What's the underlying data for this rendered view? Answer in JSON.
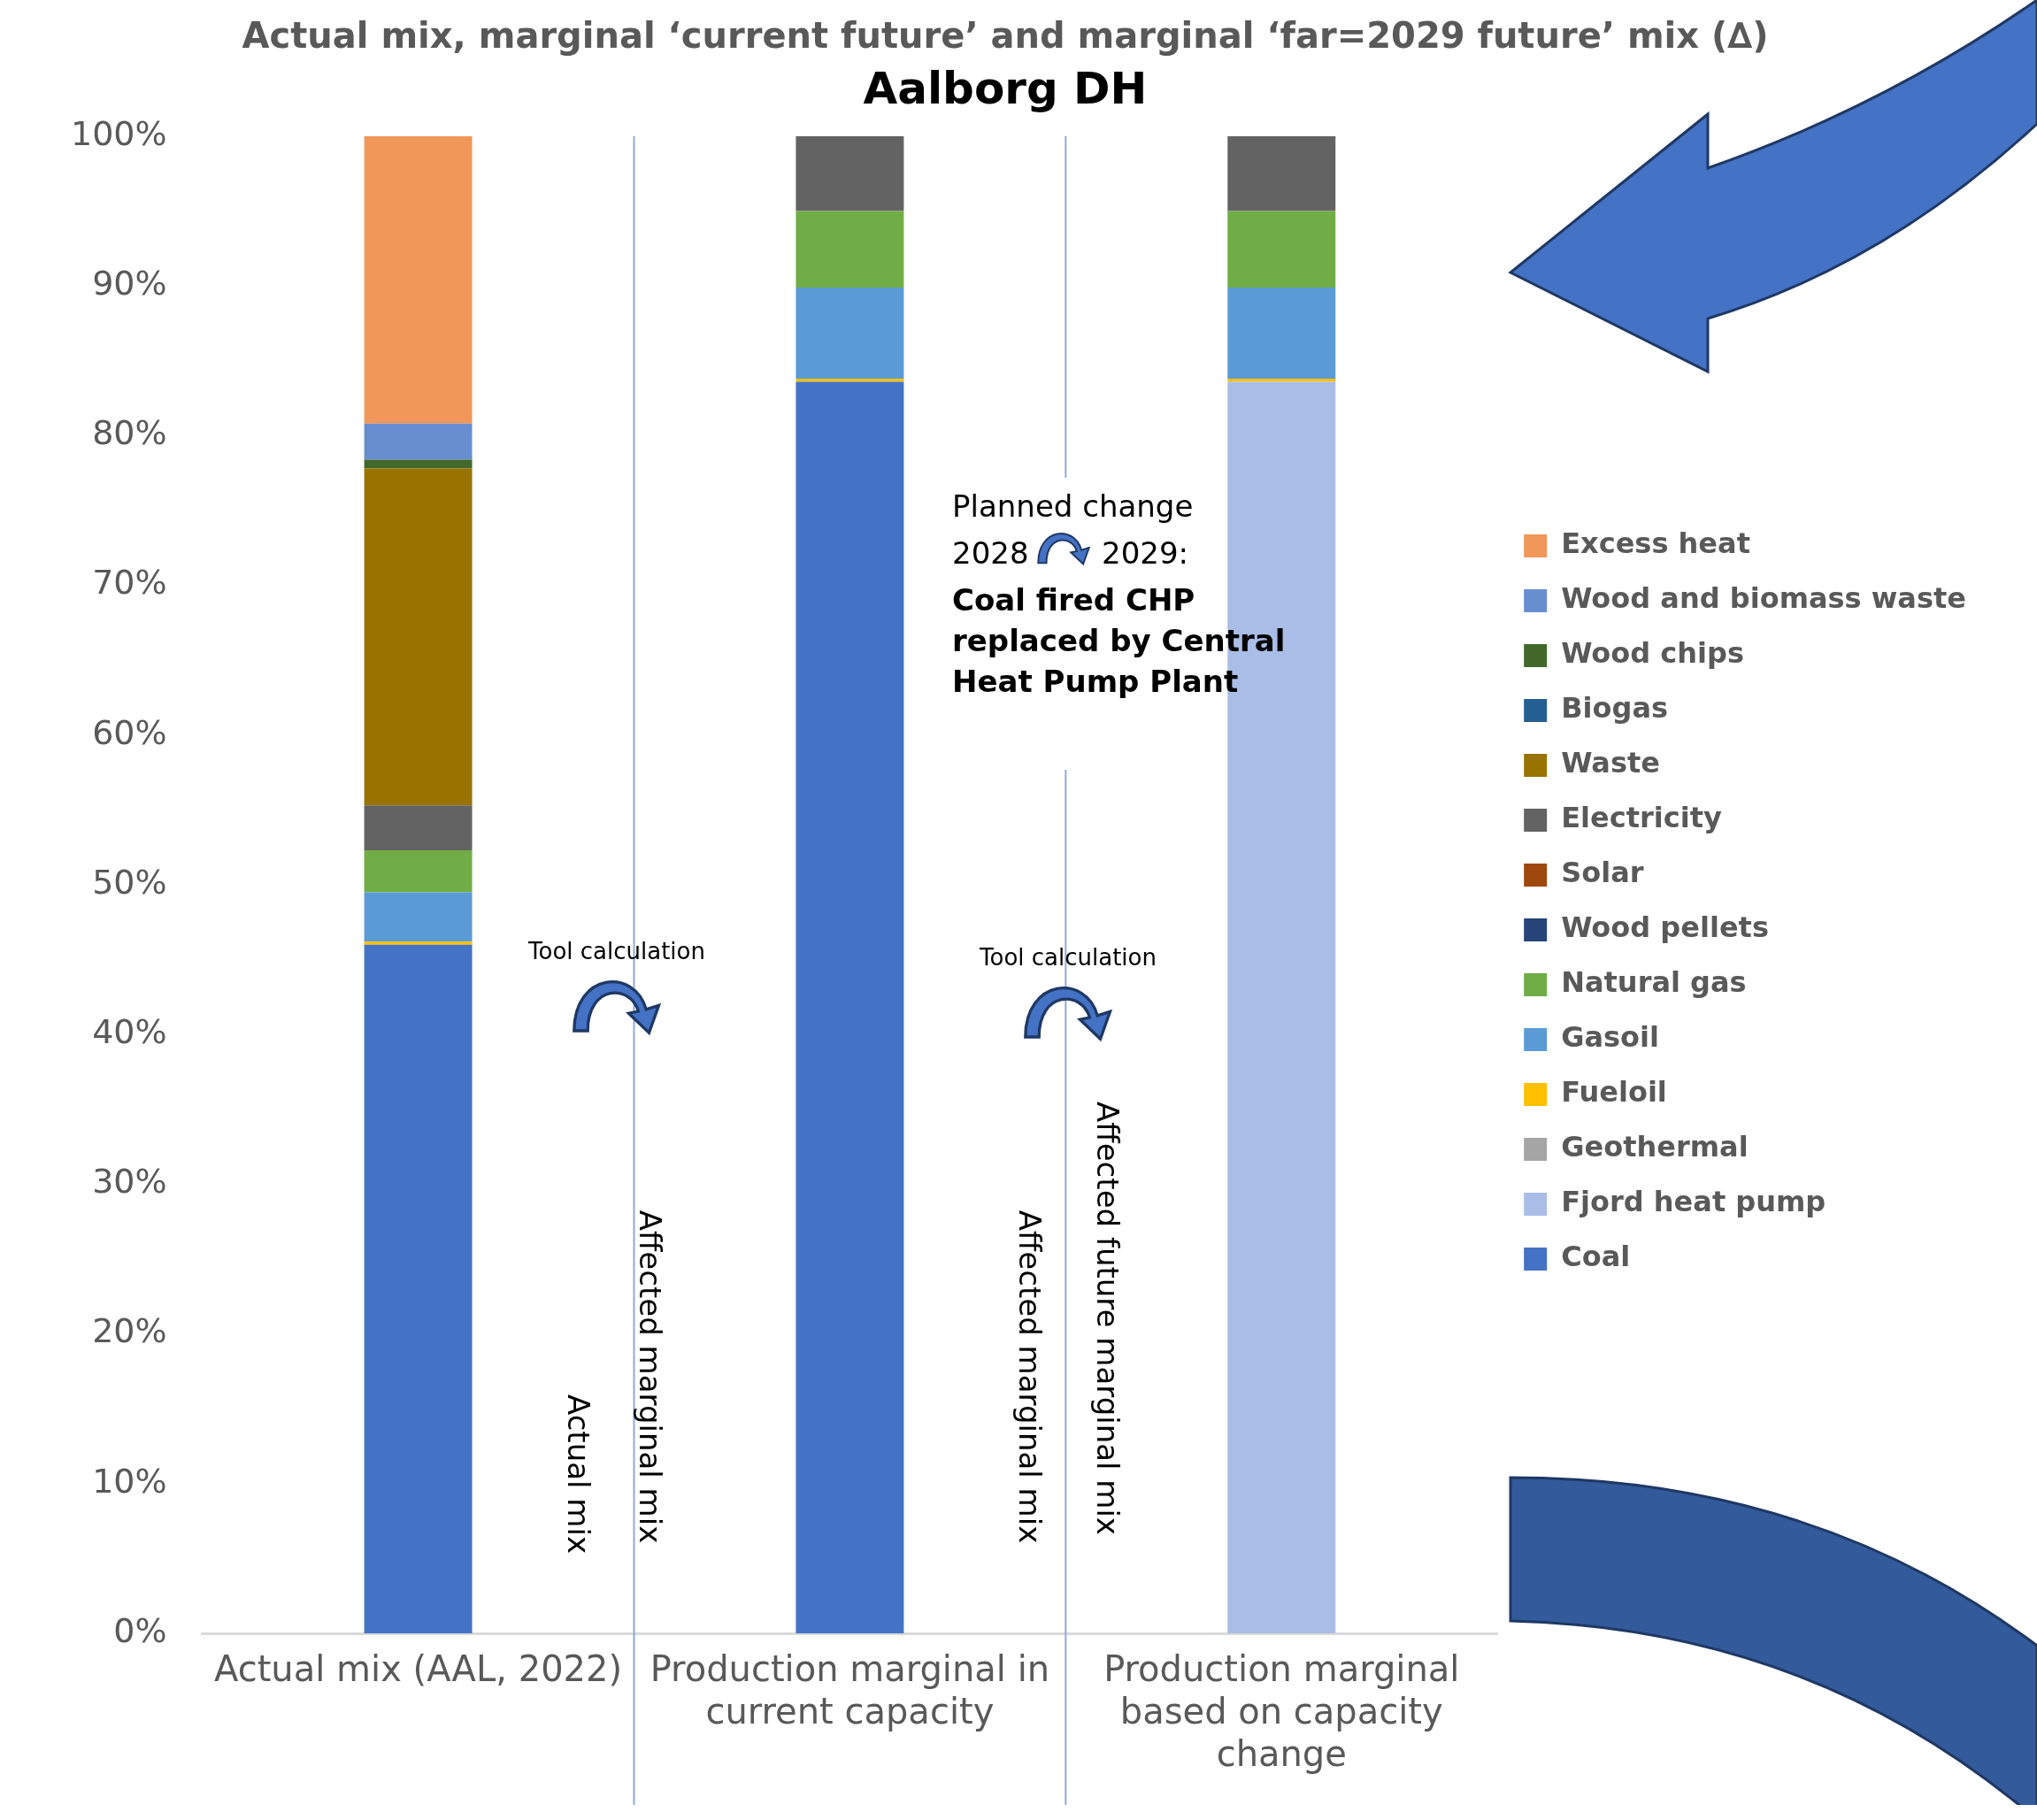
{
  "chart_data": {
    "type": "bar",
    "title": "Actual mix, marginal ‘current future’ and marginal ‘far=2029 future’ mix (∆)",
    "subtitle": "Aalborg DH",
    "categories": [
      "Actual mix (AAL, 2022)",
      "Production marginal in current capacity",
      "Production marginal based on capacity change"
    ],
    "stacked": true,
    "legend": "right",
    "grid": false,
    "ylim": [
      0,
      100
    ],
    "yticks": [
      {
        "value": 0,
        "label": "0%"
      },
      {
        "value": 10,
        "label": "10%"
      },
      {
        "value": 20,
        "label": "20%"
      },
      {
        "value": 30,
        "label": "30%"
      },
      {
        "value": 40,
        "label": "40%"
      },
      {
        "value": 50,
        "label": "50%"
      },
      {
        "value": 60,
        "label": "60%"
      },
      {
        "value": 70,
        "label": "70%"
      },
      {
        "value": 80,
        "label": "80%"
      },
      {
        "value": 90,
        "label": "90%"
      },
      {
        "value": 100,
        "label": "100%"
      }
    ],
    "series": [
      {
        "name": "Coal",
        "color": "#4472c4",
        "values": [
          46.0,
          83.6,
          0
        ]
      },
      {
        "name": "Fjord heat pump",
        "color": "#a9bde6",
        "values": [
          0,
          0,
          83.6
        ]
      },
      {
        "name": "Geothermal",
        "color": "#a5a5a5",
        "values": [
          0,
          0,
          0
        ]
      },
      {
        "name": "Fueloil",
        "color": "#ffc000",
        "values": [
          0.2,
          0.2,
          0.2
        ]
      },
      {
        "name": "Gasoil",
        "color": "#5b9bd5",
        "values": [
          3.3,
          6.1,
          6.1
        ]
      },
      {
        "name": "Natural gas",
        "color": "#70ad47",
        "values": [
          2.8,
          5.1,
          5.1
        ]
      },
      {
        "name": "Wood pellets",
        "color": "#264478",
        "values": [
          0,
          0,
          0
        ]
      },
      {
        "name": "Solar",
        "color": "#9e480e",
        "values": [
          0,
          0,
          0
        ]
      },
      {
        "name": "Electricity",
        "color": "#636363",
        "values": [
          3.0,
          5.0,
          5.0
        ]
      },
      {
        "name": "Waste",
        "color": "#997300",
        "values": [
          22.5,
          0,
          0
        ]
      },
      {
        "name": "Biogas",
        "color": "#255e91",
        "values": [
          0,
          0,
          0
        ]
      },
      {
        "name": "Wood chips",
        "color": "#43682b",
        "values": [
          0.6,
          0,
          0
        ]
      },
      {
        "name": "Wood and biomass waste",
        "color": "#698ed0",
        "values": [
          2.4,
          0,
          0
        ]
      },
      {
        "name": "Excess heat",
        "color": "#f1975a",
        "values": [
          19.2,
          0,
          0
        ]
      }
    ],
    "annotations": [
      "Planned change",
      "2028",
      "2029:",
      "Coal fired CHP replaced by Central Heat Pump Plant",
      "Tool calculation",
      "Tool calculation",
      "Actual mix",
      "Affected marginal mix",
      "Affected marginal mix",
      "Affected future marginal mix"
    ]
  }
}
